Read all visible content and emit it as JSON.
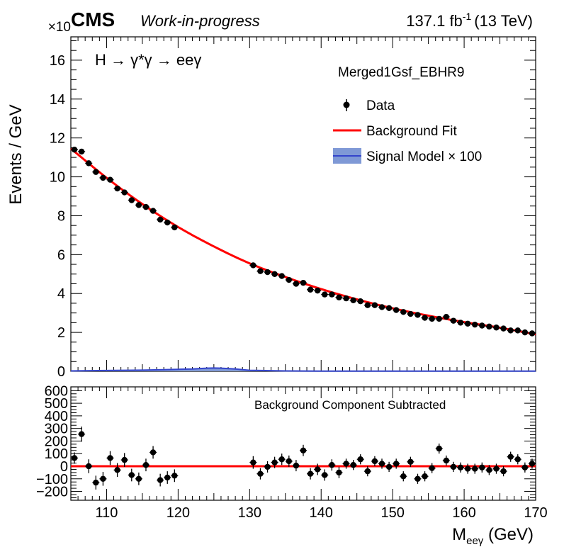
{
  "header": {
    "experiment": "CMS",
    "status": "Work-in-progress",
    "lumi": "137.1 fb",
    "lumi_exp": "-1",
    "energy": "(13 TeV)"
  },
  "chart_data": [
    {
      "type": "scatter",
      "panel": "main",
      "process": "H → γ*γ → eeγ",
      "category": "Merged1Gsf_EBHR9",
      "ylabel": "Events / GeV",
      "y_multiplier": "×10",
      "xlim": [
        105,
        170
      ],
      "ylim": [
        0,
        17.2
      ],
      "yticks": [
        0,
        2,
        4,
        6,
        8,
        10,
        12,
        14,
        16
      ],
      "legend": {
        "position": "top-right",
        "entries": [
          "Data",
          "Background Fit",
          "Signal Model  × 100"
        ]
      },
      "colors": {
        "data": "#000000",
        "background_fit": "#ff0000",
        "signal_line": "#3344cc",
        "signal_band": "#7f99d6"
      },
      "series": [
        {
          "name": "Data",
          "kind": "points",
          "x": [
            105.5,
            106.5,
            107.5,
            108.5,
            109.5,
            110.5,
            111.5,
            112.5,
            113.5,
            114.5,
            115.5,
            116.5,
            117.5,
            118.5,
            119.5,
            130.5,
            131.5,
            132.5,
            133.5,
            134.5,
            135.5,
            136.5,
            137.5,
            138.5,
            139.5,
            140.5,
            141.5,
            142.5,
            143.5,
            144.5,
            145.5,
            146.5,
            147.5,
            148.5,
            149.5,
            150.5,
            151.5,
            152.5,
            153.5,
            154.5,
            155.5,
            156.5,
            157.5,
            158.5,
            159.5,
            160.5,
            161.5,
            162.5,
            163.5,
            164.5,
            165.5,
            166.5,
            167.5,
            168.5,
            169.5
          ],
          "y": [
            11.4,
            11.3,
            10.7,
            10.25,
            9.95,
            9.85,
            9.4,
            9.2,
            8.8,
            8.55,
            8.45,
            8.25,
            7.8,
            7.65,
            7.4,
            5.45,
            5.15,
            5.1,
            5.0,
            4.9,
            4.7,
            4.5,
            4.55,
            4.2,
            4.15,
            3.95,
            3.95,
            3.8,
            3.75,
            3.65,
            3.6,
            3.4,
            3.4,
            3.3,
            3.25,
            3.15,
            3.05,
            2.95,
            2.9,
            2.75,
            2.7,
            2.7,
            2.8,
            2.6,
            2.5,
            2.45,
            2.4,
            2.35,
            2.3,
            2.25,
            2.2,
            2.1,
            2.1,
            2.0,
            1.95
          ],
          "yerr": [
            0.13,
            0.13,
            0.13,
            0.13,
            0.13,
            0.13,
            0.13,
            0.12,
            0.12,
            0.12,
            0.12,
            0.12,
            0.12,
            0.12,
            0.12,
            0.1,
            0.1,
            0.1,
            0.1,
            0.1,
            0.1,
            0.1,
            0.1,
            0.09,
            0.09,
            0.09,
            0.09,
            0.09,
            0.09,
            0.09,
            0.09,
            0.08,
            0.08,
            0.08,
            0.08,
            0.08,
            0.08,
            0.08,
            0.08,
            0.08,
            0.08,
            0.08,
            0.08,
            0.08,
            0.07,
            0.07,
            0.07,
            0.07,
            0.07,
            0.07,
            0.07,
            0.07,
            0.07,
            0.07,
            0.07
          ]
        },
        {
          "name": "Background Fit",
          "kind": "curve",
          "x": [
            105,
            110,
            115,
            120,
            125,
            130,
            135,
            140,
            145,
            150,
            155,
            160,
            165,
            170
          ],
          "y": [
            11.45,
            9.95,
            8.6,
            7.42,
            6.42,
            5.55,
            4.85,
            4.23,
            3.7,
            3.24,
            2.86,
            2.53,
            2.24,
            1.9
          ]
        },
        {
          "name": "Signal Model  × 100",
          "kind": "band",
          "x": [
            105,
            110,
            115,
            118,
            120,
            122,
            124,
            125,
            126,
            128,
            130,
            135,
            140,
            150,
            160,
            170
          ],
          "y": [
            0.02,
            0.04,
            0.06,
            0.08,
            0.1,
            0.12,
            0.16,
            0.17,
            0.16,
            0.12,
            0.05,
            0.02,
            0.01,
            0.01,
            0.01,
            0.01
          ]
        }
      ]
    },
    {
      "type": "scatter",
      "panel": "ratio",
      "title": "Background Component Subtracted",
      "xlabel": "M",
      "xlabel_sub": "eeγ",
      "xlabel_unit": " (GeV)",
      "xlim": [
        105,
        170
      ],
      "ylim": [
        -270,
        630
      ],
      "xticks": [
        110,
        120,
        130,
        140,
        150,
        160,
        170
      ],
      "yticks": [
        -200,
        -100,
        0,
        100,
        200,
        300,
        400,
        500,
        600
      ],
      "series": [
        {
          "name": "Data - Background",
          "kind": "points",
          "x": [
            105.5,
            106.5,
            107.5,
            108.5,
            109.5,
            110.5,
            111.5,
            112.5,
            113.5,
            114.5,
            115.5,
            116.5,
            117.5,
            118.5,
            119.5,
            130.5,
            131.5,
            132.5,
            133.5,
            134.5,
            135.5,
            136.5,
            137.5,
            138.5,
            139.5,
            140.5,
            141.5,
            142.5,
            143.5,
            144.5,
            145.5,
            146.5,
            147.5,
            148.5,
            149.5,
            150.5,
            151.5,
            152.5,
            153.5,
            154.5,
            155.5,
            156.5,
            157.5,
            158.5,
            159.5,
            160.5,
            161.5,
            162.5,
            163.5,
            164.5,
            165.5,
            166.5,
            167.5,
            168.5,
            169.5
          ],
          "y": [
            65,
            255,
            0,
            -130,
            -100,
            65,
            -30,
            50,
            -70,
            -100,
            10,
            110,
            -110,
            -90,
            -75,
            30,
            -60,
            -5,
            30,
            55,
            40,
            5,
            125,
            -60,
            -25,
            -70,
            10,
            -50,
            20,
            10,
            55,
            -40,
            40,
            20,
            -5,
            20,
            -80,
            35,
            -100,
            -80,
            -15,
            140,
            45,
            -5,
            -10,
            -20,
            -20,
            -10,
            -30,
            -20,
            -40,
            75,
            55,
            -10,
            20
          ],
          "yerr": [
            45,
            60,
            55,
            55,
            55,
            55,
            55,
            55,
            50,
            50,
            50,
            50,
            50,
            50,
            50,
            50,
            45,
            45,
            45,
            45,
            45,
            45,
            45,
            45,
            45,
            45,
            45,
            45,
            40,
            40,
            40,
            40,
            40,
            40,
            40,
            40,
            40,
            40,
            40,
            40,
            40,
            40,
            40,
            40,
            40,
            40,
            40,
            40,
            40,
            40,
            40,
            40,
            40,
            40,
            40
          ]
        },
        {
          "name": "Zero line",
          "kind": "line",
          "x": [
            105,
            170
          ],
          "y": [
            0,
            0
          ]
        }
      ]
    }
  ]
}
